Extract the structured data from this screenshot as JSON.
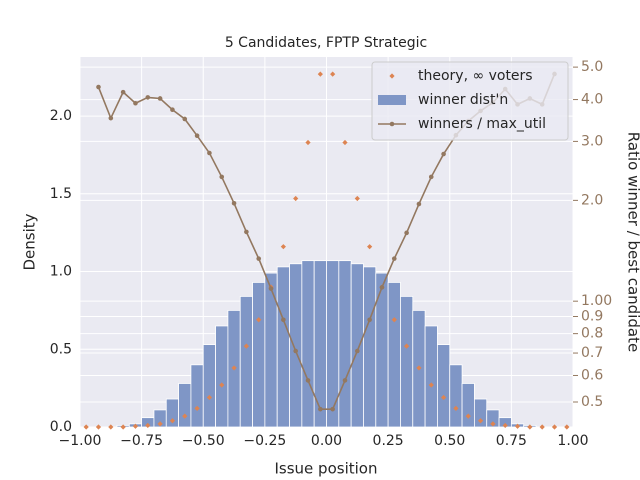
{
  "chart_data": {
    "type": "combo",
    "title": "5 Candidates, FPTP Strategic",
    "x_label": "Issue position",
    "y_label": "Density",
    "y2_label": "Ratio winner / best candidate",
    "xlim": [
      -1.0,
      1.0
    ],
    "xticks": [
      {
        "value": -1.0,
        "label": "−1.00"
      },
      {
        "value": -0.75,
        "label": "−0.75"
      },
      {
        "value": -0.5,
        "label": "−0.50"
      },
      {
        "value": -0.25,
        "label": "−0.25"
      },
      {
        "value": 0,
        "label": "0.00"
      },
      {
        "value": 0.25,
        "label": "0.25"
      },
      {
        "value": 0.5,
        "label": "0.50"
      },
      {
        "value": 0.75,
        "label": "0.75"
      },
      {
        "value": 1.0,
        "label": "1.00"
      }
    ],
    "ylim": [
      0,
      2.38
    ],
    "yticks": [
      {
        "value": 0,
        "label": "0.0"
      },
      {
        "value": 0.5,
        "label": "0.5"
      },
      {
        "value": 1.0,
        "label": "1.0"
      },
      {
        "value": 1.5,
        "label": "1.5"
      },
      {
        "value": 2.0,
        "label": "2.0"
      }
    ],
    "y2lim": [
      0.421,
      5.36
    ],
    "y2scale": "log",
    "y2ticks": [
      0.5,
      0.6,
      0.7,
      0.8,
      0.9,
      {
        "value": 1.0,
        "label": "1.00"
      },
      {
        "value": 2.0,
        "label": "2.0"
      },
      {
        "value": 3.0,
        "label": "3.0"
      },
      {
        "value": 4.0,
        "label": "4.0"
      },
      {
        "value": 5.0,
        "label": "5.0"
      }
    ],
    "grid": true,
    "legend": "upper right",
    "series": [
      {
        "name": "theory, ∞ voters",
        "type": "scatter",
        "color": "#dd8452",
        "x": [
          -0.975,
          -0.925,
          -0.875,
          -0.825,
          -0.775,
          -0.725,
          -0.675,
          -0.625,
          -0.575,
          -0.525,
          -0.475,
          -0.425,
          -0.375,
          -0.325,
          -0.275,
          -0.225,
          -0.175,
          -0.125,
          -0.075,
          -0.025,
          0.025,
          0.075,
          0.125,
          0.175,
          0.225,
          0.275,
          0.325,
          0.375,
          0.425,
          0.475,
          0.525,
          0.575,
          0.625,
          0.675,
          0.725,
          0.775,
          0.825,
          0.875,
          0.925,
          0.975
        ],
        "values": [
          0,
          0,
          0,
          0,
          0.005,
          0.01,
          0.02,
          0.04,
          0.07,
          0.12,
          0.19,
          0.27,
          0.38,
          0.52,
          0.69,
          0.9,
          1.16,
          1.47,
          1.83,
          2.27,
          2.27,
          1.83,
          1.47,
          1.16,
          0.9,
          0.69,
          0.52,
          0.38,
          0.27,
          0.19,
          0.12,
          0.07,
          0.04,
          0.02,
          0.01,
          0.005,
          0,
          0,
          0,
          0
        ]
      },
      {
        "name": "winner dist'n",
        "type": "histogram",
        "color": "#7f96c6",
        "bins": [
          -1.0,
          -0.95,
          -0.9,
          -0.85,
          -0.8,
          -0.75,
          -0.7,
          -0.65,
          -0.6,
          -0.55,
          -0.5,
          -0.45,
          -0.4,
          -0.35,
          -0.3,
          -0.25,
          -0.2,
          -0.15,
          -0.1,
          -0.05,
          0,
          0.05,
          0.1,
          0.15,
          0.2,
          0.25,
          0.3,
          0.35,
          0.4,
          0.45,
          0.5,
          0.55,
          0.6,
          0.65,
          0.7,
          0.75,
          0.8,
          0.85,
          0.9,
          0.95,
          1.0
        ],
        "values": [
          0,
          0,
          0,
          0.01,
          0.02,
          0.06,
          0.11,
          0.18,
          0.28,
          0.4,
          0.53,
          0.65,
          0.75,
          0.84,
          0.93,
          0.99,
          1.03,
          1.05,
          1.07,
          1.07,
          1.07,
          1.07,
          1.05,
          1.03,
          0.99,
          0.93,
          0.84,
          0.75,
          0.65,
          0.53,
          0.4,
          0.28,
          0.18,
          0.11,
          0.06,
          0.02,
          0.01,
          0,
          0,
          0
        ]
      },
      {
        "name": "winners / max_util",
        "type": "line",
        "axis": "y2",
        "color": "#937860",
        "x": [
          -0.925,
          -0.875,
          -0.825,
          -0.775,
          -0.725,
          -0.675,
          -0.625,
          -0.575,
          -0.525,
          -0.475,
          -0.425,
          -0.375,
          -0.325,
          -0.275,
          -0.225,
          -0.175,
          -0.125,
          -0.075,
          -0.025,
          0.025,
          0.075,
          0.125,
          0.175,
          0.225,
          0.275,
          0.325,
          0.375,
          0.425,
          0.475,
          0.525,
          0.575,
          0.625,
          0.675,
          0.725,
          0.775,
          0.825,
          0.875,
          0.925
        ],
        "values": [
          4.36,
          3.52,
          4.21,
          3.9,
          4.06,
          4.03,
          3.73,
          3.5,
          3.12,
          2.77,
          2.35,
          1.96,
          1.61,
          1.34,
          1.09,
          0.88,
          0.71,
          0.58,
          0.476,
          0.476,
          0.58,
          0.71,
          0.88,
          1.1,
          1.34,
          1.6,
          1.95,
          2.35,
          2.75,
          3.13,
          3.45,
          3.7,
          3.92,
          4.3,
          3.87,
          4.03,
          3.87,
          4.77
        ]
      }
    ]
  }
}
